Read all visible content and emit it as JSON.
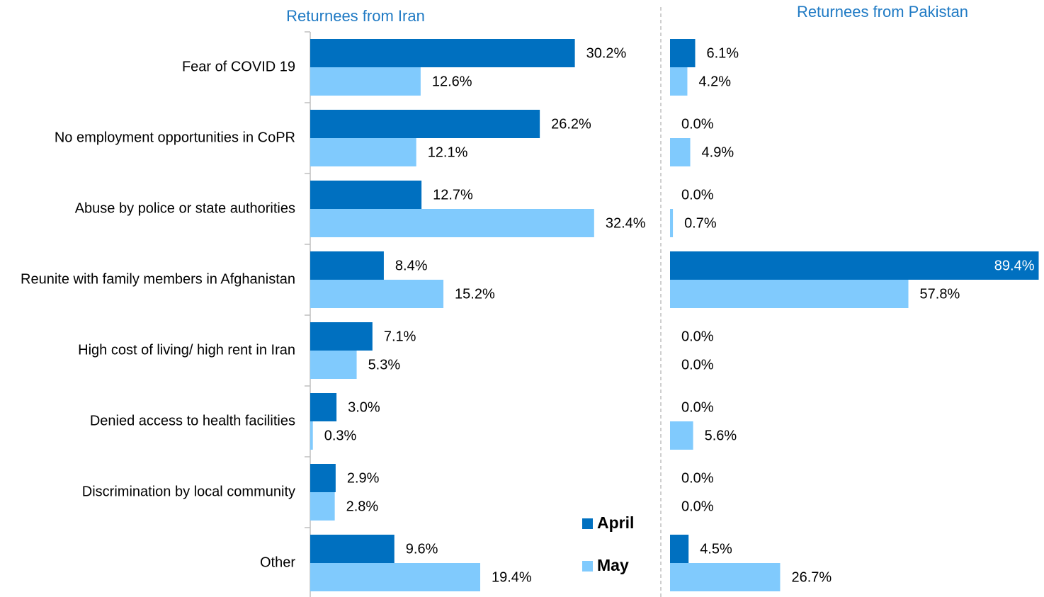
{
  "chart_data": [
    {
      "type": "bar",
      "orientation": "horizontal",
      "title": "Returnees from Iran",
      "categories": [
        "Fear of COVID 19",
        "No employment opportunities in CoPR",
        "Abuse by police or state authorities",
        "Reunite with family members in Afghanistan",
        "High cost of living/ high rent in Iran",
        "Denied access to health facilities",
        "Discrimination by local community",
        "Other"
      ],
      "xlim": [
        0,
        35
      ],
      "legend": "lower right",
      "series": [
        {
          "name": "April",
          "color": "#0070c0",
          "values": [
            30.2,
            26.2,
            12.7,
            8.4,
            7.1,
            3.0,
            2.9,
            9.6
          ],
          "value_labels": [
            "30.2%",
            "26.2%",
            "12.7%",
            "8.4%",
            "7.1%",
            "3.0%",
            "2.9%",
            "9.6%"
          ]
        },
        {
          "name": "May",
          "color": "#80cafd",
          "values": [
            12.6,
            12.1,
            32.4,
            15.2,
            5.3,
            0.3,
            2.8,
            19.4
          ],
          "value_labels": [
            "12.6%",
            "12.1%",
            "32.4%",
            "15.2%",
            "5.3%",
            "0.3%",
            "2.8%",
            "19.4%"
          ]
        }
      ]
    },
    {
      "type": "bar",
      "orientation": "horizontal",
      "title": "Returnees from Pakistan",
      "xlim": [
        0,
        90
      ],
      "series": [
        {
          "color": "#0070c0",
          "values": [
            6.1,
            0.0,
            0.0,
            89.4,
            0.0,
            0.0,
            0.0,
            4.5
          ],
          "value_labels": [
            "6.1%",
            "0.0%",
            "0.0%",
            "89.4%",
            "0.0%",
            "0.0%",
            "0.0%",
            "4.5%"
          ]
        },
        {
          "color": "#80cafd",
          "values": [
            4.2,
            4.9,
            0.7,
            57.8,
            0.0,
            5.6,
            0.0,
            26.7
          ],
          "value_labels": [
            "4.2%",
            "4.9%",
            "0.7%",
            "57.8%",
            "0.0%",
            "5.6%",
            "0.0%",
            "26.7%"
          ]
        }
      ]
    }
  ]
}
